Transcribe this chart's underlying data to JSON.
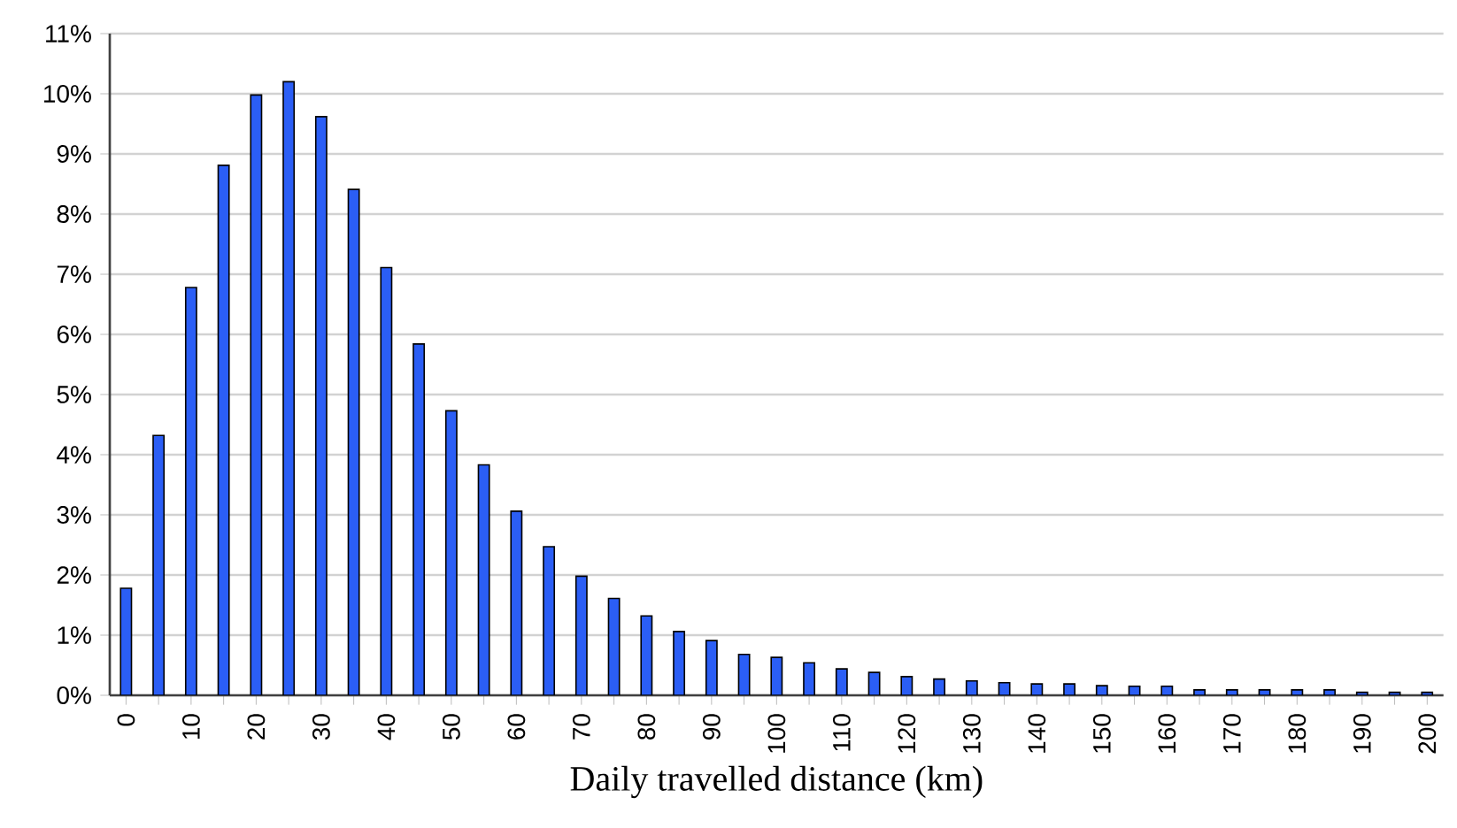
{
  "chart_data": {
    "type": "bar",
    "xlabel": "Daily travelled distance (km)",
    "categories": [
      "0",
      null,
      "10",
      null,
      "20",
      null,
      "30",
      null,
      "40",
      null,
      "50",
      null,
      "60",
      null,
      "70",
      null,
      "80",
      null,
      "90",
      null,
      "100",
      null,
      "110",
      null,
      "120",
      null,
      "130",
      null,
      "140",
      null,
      "150",
      null,
      "160",
      null,
      "170",
      null,
      "180",
      null,
      "190",
      null,
      "200"
    ],
    "values": [
      1.78,
      4.32,
      6.78,
      8.81,
      9.98,
      10.2,
      9.62,
      8.41,
      7.11,
      5.84,
      4.73,
      3.83,
      3.06,
      2.47,
      1.98,
      1.61,
      1.32,
      1.06,
      0.91,
      0.68,
      0.63,
      0.54,
      0.44,
      0.38,
      0.31,
      0.27,
      0.24,
      0.21,
      0.19,
      0.19,
      0.16,
      0.15,
      0.15,
      0.09,
      0.09,
      0.09,
      0.09,
      0.09,
      0.05,
      0.05,
      0.05
    ],
    "color": "#2b5ef5",
    "ylim": [
      0,
      11
    ],
    "yticks": [
      {
        "value": 0,
        "label": "0%"
      },
      {
        "value": 1,
        "label": "1%"
      },
      {
        "value": 2,
        "label": "2%"
      },
      {
        "value": 3,
        "label": "3%"
      },
      {
        "value": 4,
        "label": "4%"
      },
      {
        "value": 5,
        "label": "5%"
      },
      {
        "value": 6,
        "label": "6%"
      },
      {
        "value": 7,
        "label": "7%"
      },
      {
        "value": 8,
        "label": "8%"
      },
      {
        "value": 9,
        "label": "9%"
      },
      {
        "value": 10,
        "label": "10%"
      },
      {
        "value": 11,
        "label": "11%"
      }
    ],
    "grid": "y"
  }
}
